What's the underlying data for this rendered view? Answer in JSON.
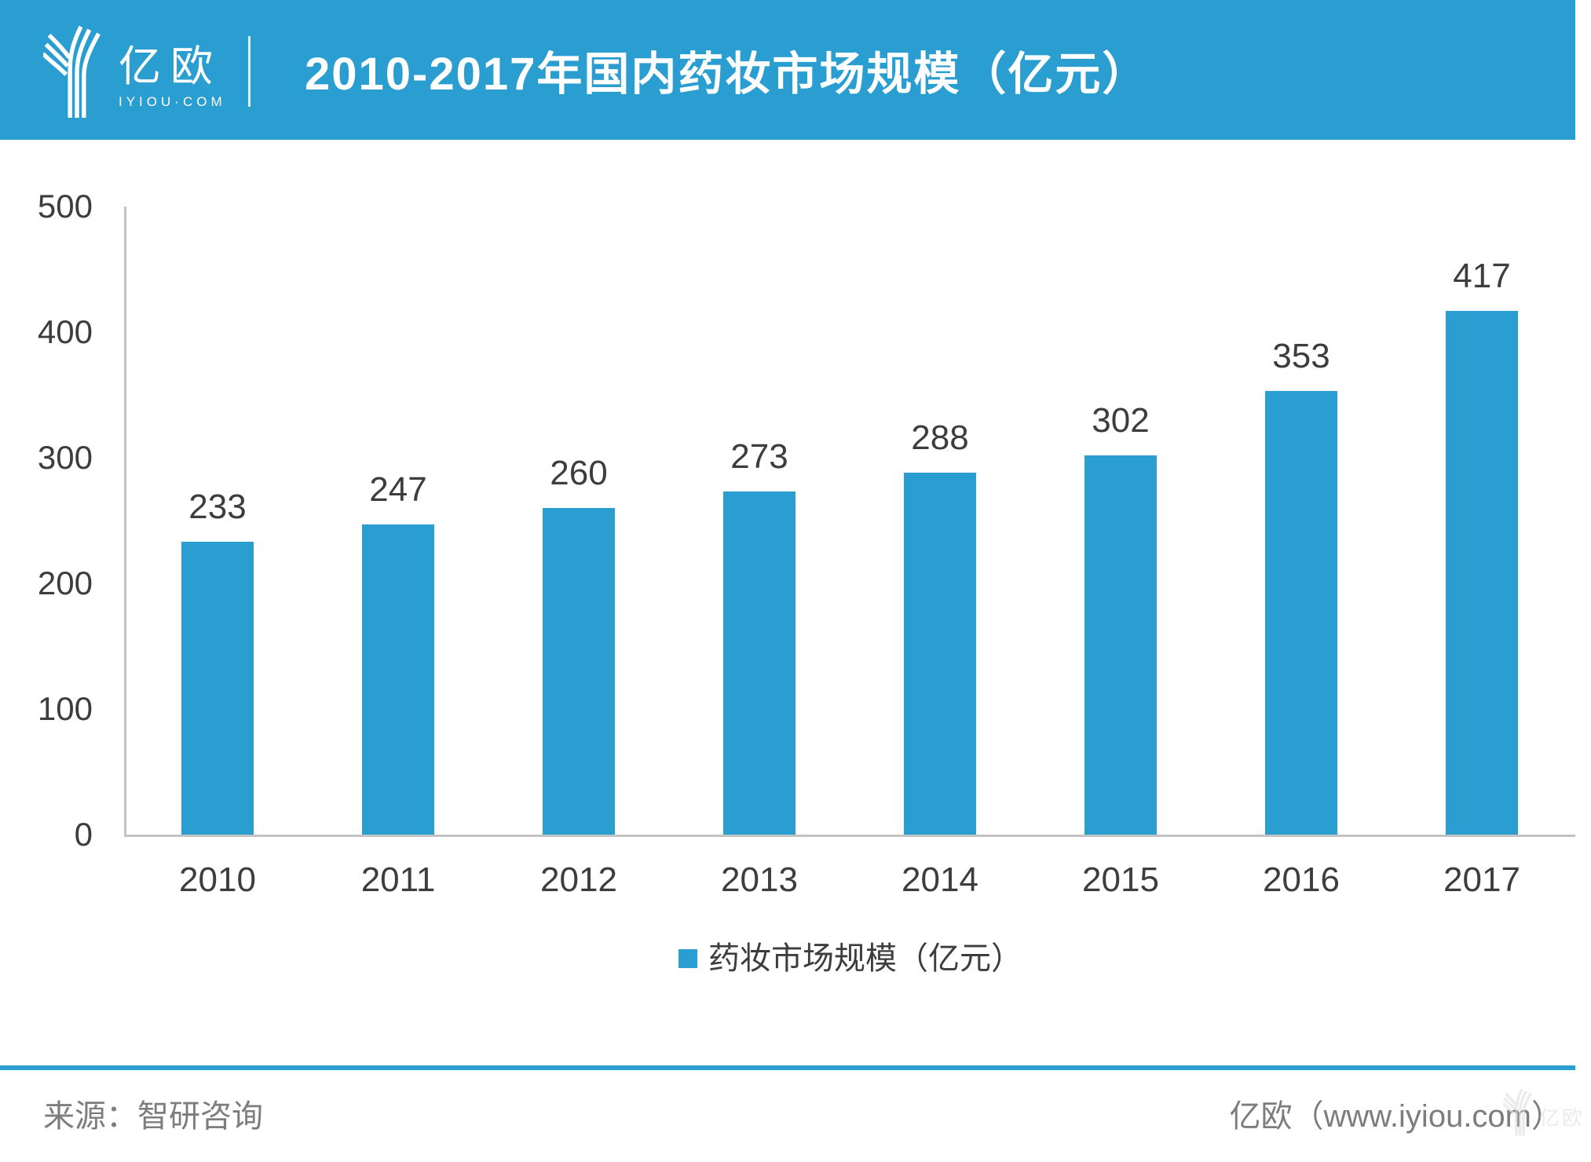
{
  "colors": {
    "accent": "#2A9DD1",
    "axis_line": "#C3C3C3",
    "text_dark": "#3D3D3D",
    "text_gray": "#7D7D7D",
    "header_text": "#FFFFFF"
  },
  "header": {
    "logo_cn": "亿欧",
    "logo_en": "IYIOU·COM",
    "title": "2010-2017年国内药妆市场规模（亿元）"
  },
  "chart_data": {
    "type": "bar",
    "title": "2010-2017年国内药妆市场规模（亿元）",
    "categories": [
      "2010",
      "2011",
      "2012",
      "2013",
      "2014",
      "2015",
      "2016",
      "2017"
    ],
    "values": [
      233,
      247,
      260,
      273,
      288,
      302,
      353,
      417
    ],
    "series_name": "药妆市场规模（亿元）",
    "xlabel": "",
    "ylabel": "",
    "ylim": [
      0,
      500
    ],
    "yticks": [
      0,
      100,
      200,
      300,
      400,
      500
    ],
    "grid": false,
    "legend_position": "bottom",
    "bar_color": "#2A9DD1",
    "value_labels": true
  },
  "legend": {
    "label": "药妆市场规模（亿元）"
  },
  "footer": {
    "source": "来源：智研咨询",
    "site": "亿欧（www.iyiou.com）",
    "watermark_cn": "亿欧"
  }
}
